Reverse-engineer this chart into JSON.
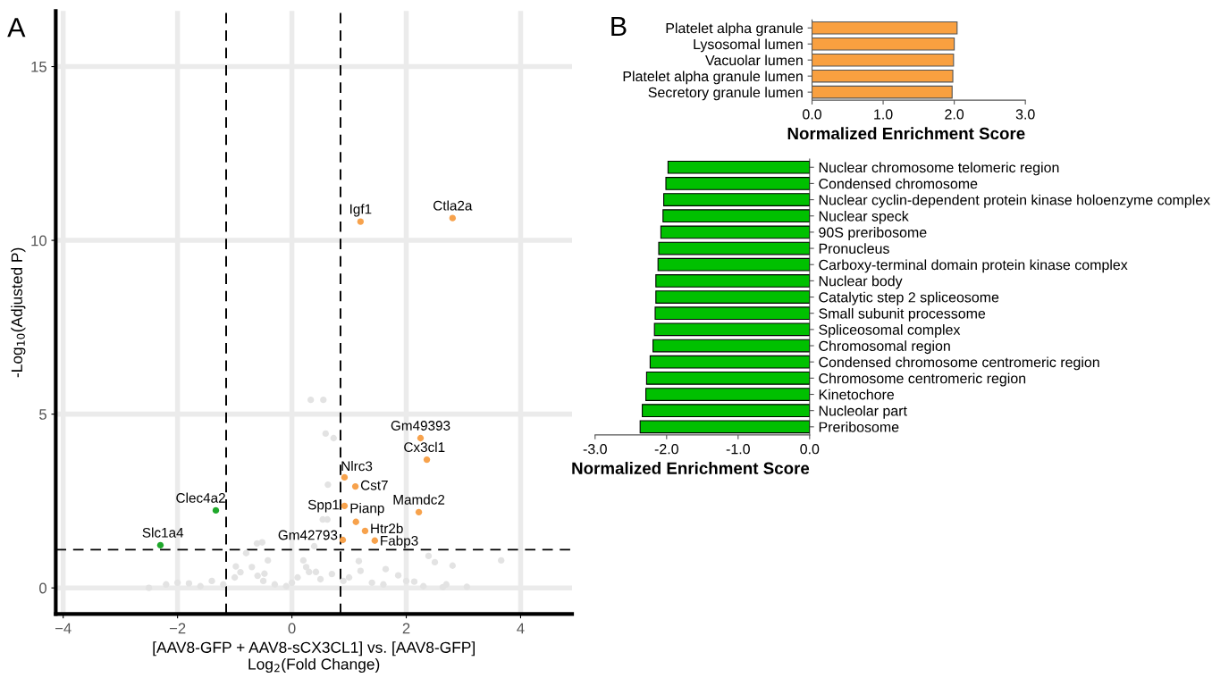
{
  "chart_data": [
    {
      "type": "scatter",
      "title": "A",
      "xlabel": "[AAV8-GFP + AAV8-sCX3CL1] vs. [AAV8-GFP]\nLog$_{2}$(Fold Change)",
      "ylabel": "-Log$_{10}$(Adjusted P)",
      "xlim": [
        -4.13,
        4.9
      ],
      "ylim": [
        -0.75,
        16.6
      ],
      "xticks": [
        {
          "value": -4,
          "label": "−4"
        },
        {
          "value": -2,
          "label": "−2"
        },
        0,
        2,
        4
      ],
      "yticks": [
        0,
        5,
        10,
        15
      ],
      "grid": true,
      "marker": "circle",
      "series": [
        {
          "color": "#e3e3e3",
          "x": [
            0.33,
            0.55,
            0.59,
            0.73,
            0.63,
            0.54,
            0.62,
            -2.5,
            -1.8,
            -0.8,
            -0.61,
            -0.52,
            -0.98,
            -0.42,
            -0.48,
            0.2,
            0.3,
            0.42,
            0.39,
            1.17,
            1.2,
            1.64,
            1.86,
            2.39,
            2.5,
            2.81,
            3.66,
            3.06,
            2.14,
            2.64,
            -2.2,
            -2.0,
            -1.6,
            -1.4,
            -1.2,
            -1.0,
            -0.9,
            -0.7,
            -0.6,
            -0.5,
            -0.3,
            -0.1,
            0.0,
            0.1,
            0.25,
            0.5,
            0.7,
            0.9,
            1.0,
            1.4,
            1.6,
            2.0,
            2.3,
            2.7
          ],
          "values": [
            5.41,
            5.41,
            4.44,
            4.31,
            2.97,
            1.97,
            1.97,
            0.0,
            0.13,
            1.0,
            1.28,
            1.31,
            0.62,
            0.79,
            0.41,
            0.79,
            0.46,
            0.46,
            1.2,
            0.77,
            0.49,
            0.54,
            0.36,
            0.92,
            0.74,
            0.64,
            0.79,
            0.03,
            0.18,
            0.02,
            0.1,
            0.15,
            0.05,
            0.2,
            0.1,
            0.3,
            0.45,
            0.6,
            0.35,
            0.2,
            0.1,
            0.05,
            0.15,
            0.3,
            0.6,
            0.25,
            0.4,
            0.2,
            0.3,
            0.15,
            0.1,
            0.2,
            0.05,
            0.1
          ]
        },
        {
          "color": "#f7a24c",
          "x": [
            1.2,
            2.81,
            2.25,
            2.36,
            0.92,
            1.11,
            0.92,
            2.22,
            1.12,
            1.28,
            1.45,
            0.89
          ],
          "values": [
            10.54,
            10.64,
            4.31,
            3.69,
            3.18,
            2.92,
            2.36,
            2.18,
            1.9,
            1.64,
            1.36,
            1.38
          ]
        },
        {
          "color": "#1fa82b",
          "x": [
            -1.33,
            -2.3
          ],
          "values": [
            2.23,
            1.23
          ]
        }
      ],
      "ref_lines": [
        {
          "axis": "x",
          "value": -1.15,
          "line_style": "dashed",
          "color": "#000000"
        },
        {
          "axis": "x",
          "value": 0.85,
          "line_style": "dashed",
          "color": "#000000"
        },
        {
          "axis": "y",
          "value": 1.1,
          "line_style": "dashed",
          "color": "#000000"
        }
      ],
      "annotations": [
        {
          "text": "Igf1",
          "x": 1.2,
          "y": 10.54
        },
        {
          "text": "Ctla2a",
          "x": 2.81,
          "y": 10.64
        },
        {
          "text": "Gm49393",
          "x": 2.25,
          "y": 4.31
        },
        {
          "text": "Cx3cl1",
          "x": 2.36,
          "y": 3.69
        },
        {
          "text": "Nlrc3",
          "x": 0.92,
          "y": 3.18
        },
        {
          "text": "Cst7",
          "x": 1.11,
          "y": 2.92
        },
        {
          "text": "Spp1",
          "x": 0.92,
          "y": 2.36
        },
        {
          "text": "Mamdc2",
          "x": 2.22,
          "y": 2.18
        },
        {
          "text": "Pianp",
          "x": 1.12,
          "y": 1.9
        },
        {
          "text": "Htr2b",
          "x": 1.28,
          "y": 1.64
        },
        {
          "text": "Fabp3",
          "x": 1.45,
          "y": 1.36
        },
        {
          "text": "Gm42793",
          "x": 0.89,
          "y": 1.38
        },
        {
          "text": "Clec4a2",
          "x": -1.33,
          "y": 2.23
        },
        {
          "text": "Slc1a4",
          "x": -2.3,
          "y": 1.23
        }
      ]
    },
    {
      "type": "bar",
      "orientation": "horizontal",
      "title": "B",
      "xlabel": "Normalized Enrichment Score",
      "categories": [
        "Platelet alpha granule",
        "Lysosomal lumen",
        "Vacuolar lumen",
        "Platelet alpha granule lumen",
        "Secretory granule lumen"
      ],
      "values": [
        2.04,
        2.0,
        1.99,
        1.98,
        1.97
      ],
      "color": "#f9a040",
      "xlim": [
        0,
        3
      ],
      "xticks": [
        {
          "value": 0,
          "label": "0.0"
        },
        {
          "value": 1,
          "label": "1.0"
        },
        {
          "value": 2,
          "label": "2.0"
        },
        {
          "value": 3,
          "label": "3.0"
        }
      ]
    },
    {
      "type": "bar",
      "orientation": "horizontal",
      "xlabel": "Normalized Enrichment Score",
      "categories": [
        "Nuclear chromosome telomeric region",
        "Condensed chromosome",
        "Nuclear cyclin-dependent protein kinase holoenzyme complex",
        "Nuclear speck",
        "90S preribosome",
        "Pronucleus",
        "Carboxy-terminal domain protein kinase complex",
        "Nuclear body",
        "Catalytic step 2 spliceosome",
        "Small subunit processome",
        "Spliceosomal complex",
        "Chromosomal region",
        "Condensed chromosome centromeric region",
        "Chromosome centromeric region",
        "Kinetochore",
        "Nucleolar part",
        "Preribosome"
      ],
      "values": [
        -1.98,
        -2.01,
        -2.04,
        -2.05,
        -2.08,
        -2.11,
        -2.12,
        -2.15,
        -2.15,
        -2.16,
        -2.17,
        -2.19,
        -2.23,
        -2.28,
        -2.29,
        -2.34,
        -2.37
      ],
      "color": "#00c000",
      "xlim": [
        -3,
        0
      ],
      "xticks": [
        {
          "value": -3,
          "label": "-3.0"
        },
        {
          "value": -2,
          "label": "-2.0"
        },
        {
          "value": -1,
          "label": "-1.0"
        },
        {
          "value": 0,
          "label": "0.0"
        }
      ]
    }
  ]
}
